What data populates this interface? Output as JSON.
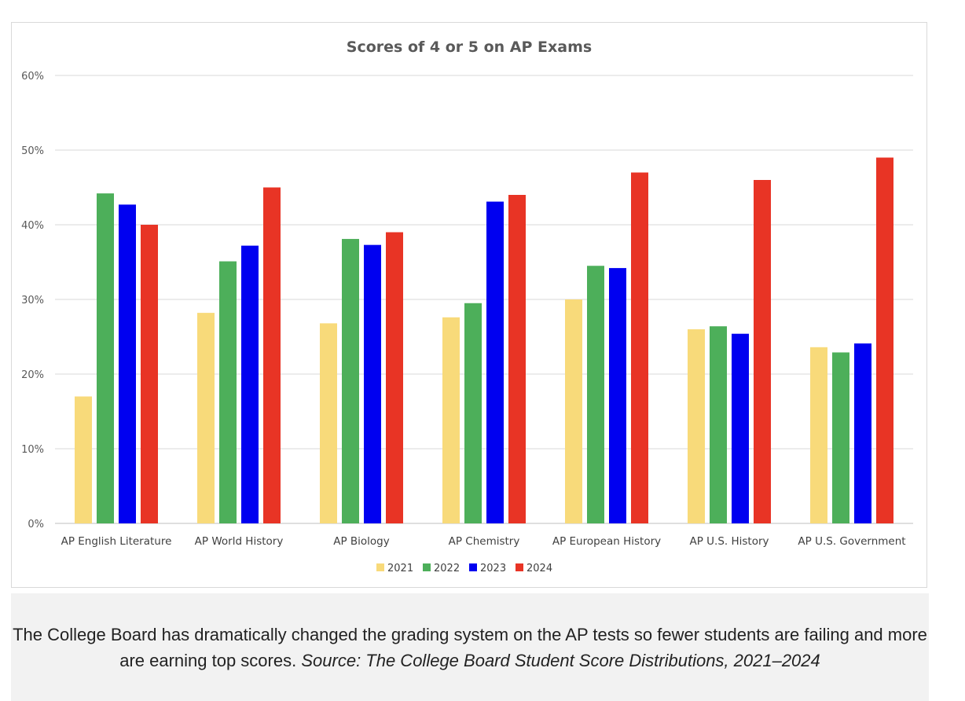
{
  "chart_data": {
    "type": "bar",
    "title": "Scores of 4 or 5 on AP Exams",
    "xlabel": "",
    "ylabel": "",
    "ylim": [
      0,
      60
    ],
    "yticks": [
      "0%",
      "10%",
      "20%",
      "30%",
      "40%",
      "50%",
      "60%"
    ],
    "ytick_values": [
      0,
      10,
      20,
      30,
      40,
      50,
      60
    ],
    "grid": true,
    "legend_position": "bottom",
    "categories": [
      "AP English Literature",
      "AP World History",
      "AP Biology",
      "AP Chemistry",
      "AP European History",
      "AP U.S. History",
      "AP U.S. Government"
    ],
    "series": [
      {
        "name": "2021",
        "color": "#f8da7a",
        "values": [
          17,
          28.2,
          26.8,
          27.6,
          30,
          26,
          23.6
        ]
      },
      {
        "name": "2022",
        "color": "#4daf5a",
        "values": [
          44.2,
          35.1,
          38.1,
          29.5,
          34.5,
          26.4,
          22.9
        ]
      },
      {
        "name": "2023",
        "color": "#0000f0",
        "values": [
          42.7,
          37.2,
          37.3,
          43.1,
          34.2,
          25.4,
          24.1
        ]
      },
      {
        "name": "2024",
        "color": "#e83425",
        "values": [
          40,
          45,
          39,
          44,
          47,
          46,
          49
        ]
      }
    ]
  },
  "caption": {
    "text": "The College Board has dramatically changed the grading system on the AP tests so fewer students are failing and more are earning top scores.",
    "source": "Source: The College Board Student Score Distributions, 2021–2024"
  }
}
